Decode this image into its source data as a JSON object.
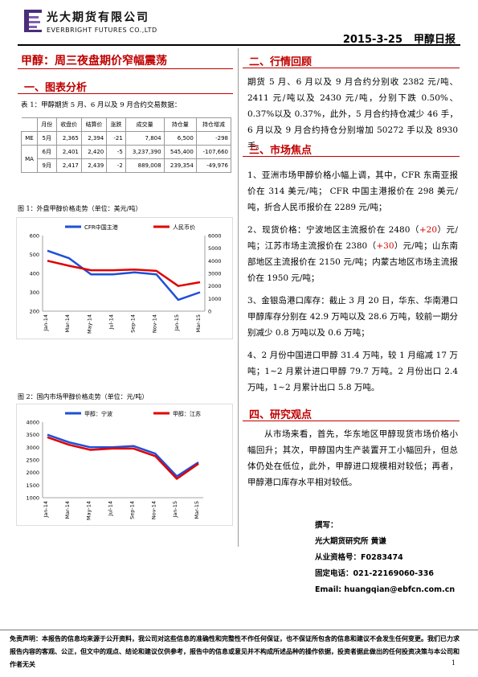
{
  "header": {
    "company_cn": "光大期货有限公司",
    "company_en": "EVERBRIGHT FUTURES CO.,LTD",
    "date": "2015-3-25",
    "report_name": "甲醇日报"
  },
  "headline": "甲醇：周三夜盘期价窄幅震荡",
  "section1": {
    "title": "一、图表分析",
    "table_caption": "表 1：甲醇期货 5 月、6 月以及 9 月合约交易数据：",
    "table": {
      "headers": [
        "月份",
        "收盘价",
        "结算价",
        "涨跌",
        "成交量",
        "持仓量",
        "持仓增减"
      ],
      "rows": [
        {
          "exchange": "ME",
          "month": "5月",
          "close": "2,365",
          "settle": "2,394",
          "change": "-21",
          "volume": "7,804",
          "oi": "6,500",
          "oi_chg": "-298"
        },
        {
          "exchange": "MA",
          "month": "6月",
          "close": "2,401",
          "settle": "2,420",
          "change": "-5",
          "volume": "3,237,390",
          "oi": "545,400",
          "oi_chg": "-107,660"
        },
        {
          "exchange": "",
          "month": "9月",
          "close": "2,417",
          "settle": "2,439",
          "change": "-2",
          "volume": "889,008",
          "oi": "239,354",
          "oi_chg": "-49,976"
        }
      ]
    },
    "fig1_caption": "图 1：外盘甲醇价格走势（单位：美元/吨）",
    "fig2_caption": "图 2：国内市场甲醇价格走势（单位：元/吨）"
  },
  "chart_data": [
    {
      "type": "line",
      "x": [
        "Jan-14",
        "Mar-14",
        "May-14",
        "Jul-14",
        "Sep-14",
        "Nov-14",
        "Jan-15",
        "Mar-15"
      ],
      "series": [
        {
          "name": "CFR中国主港",
          "axis": "left",
          "color": "#1f4fd8",
          "values": [
            520,
            480,
            395,
            395,
            405,
            395,
            260,
            300
          ]
        },
        {
          "name": "人民币价",
          "axis": "right",
          "color": "#e00000",
          "values": [
            4000,
            3600,
            3250,
            3250,
            3300,
            3200,
            2000,
            2300
          ]
        }
      ],
      "ylim_left": [
        200,
        600
      ],
      "yticks_left": [
        200,
        300,
        400,
        500,
        600
      ],
      "ylim_right": [
        0,
        6000
      ],
      "yticks_right": [
        0,
        1000,
        2000,
        3000,
        4000,
        5000,
        6000
      ],
      "xticks": [
        "Jan-14",
        "Mar-14",
        "May-14",
        "Jul-14",
        "Sep-14",
        "Nov-14",
        "Jan-15",
        "Mar-15"
      ]
    },
    {
      "type": "line",
      "x": [
        "Jan-14",
        "Mar-14",
        "May-14",
        "Jul-14",
        "Sep-14",
        "Nov-14",
        "Jan-15",
        "Mar-15"
      ],
      "series": [
        {
          "name": "甲醇：宁波",
          "color": "#1f4fd8",
          "values": [
            3500,
            3200,
            3000,
            3000,
            3050,
            2750,
            1850,
            2400
          ]
        },
        {
          "name": "甲醇：江苏",
          "color": "#e00000",
          "values": [
            3400,
            3100,
            2900,
            2950,
            2950,
            2650,
            1750,
            2350
          ]
        }
      ],
      "ylim": [
        1000,
        4000
      ],
      "yticks": [
        1000,
        1500,
        2000,
        2500,
        3000,
        3500,
        4000
      ],
      "xticks": [
        "Jan-14",
        "Mar-14",
        "May-14",
        "Jul-14",
        "Sep-14",
        "Nov-14",
        "Jan-15",
        "Mar-15"
      ]
    }
  ],
  "section2": {
    "title": "二、行情回顾",
    "text": "期货 5 月、6 月以及 9 月合约分别收 2382 元/吨、2411 元/吨以及 2430 元/吨，分别下跌 0.50%、0.37%以及 0.37%，此外，5 月合约持仓减少 46 手，6 月以及 9 月合约持仓分别增加 50272 手以及 8930 手。"
  },
  "section3": {
    "title": "三、市场焦点",
    "p1": "1、亚洲市场甲醇价格小幅上调，其中，CFR 东南亚报价在 314 美元/吨； CFR 中国主港报价在 298 美元/吨，折合人民币报价在 2289 元/吨；",
    "p2_a": "2、现货价格：宁波地区主流报价在 2480（",
    "p2_b": "+20",
    "p2_c": "）元/吨；江苏市场主流报价在 2380（",
    "p2_d": "+30",
    "p2_e": "）元/吨；山东南部地区主流报价在 2150 元/吨；内蒙古地区市场主流报价在 1950 元/吨；",
    "p3": "3、金银岛港口库存：截止 3 月 20 日，华东、华南港口甲醇库存分别在 42.9 万吨以及 28.6 万吨，较前一期分别减少 0.8 万吨以及 0.6 万吨；",
    "p4": "4、2 月份中国进口甲醇 31.4 万吨，较 1 月缩减 17 万吨；1~2 月累计进口甲醇 79.7 万吨。2 月份出口 2.4 万吨，1~2 月累计出口 5.8 万吨。"
  },
  "section4": {
    "title": "四、研究观点",
    "text": "从市场来看，首先，华东地区甲醇现货市场价格小幅回升；其次，甲醇国内生产装置开工小幅回升，但总体仍处在低位，此外，甲醇进口规模相对较低；再者，甲醇港口库存水平相对较低。"
  },
  "signature": {
    "label": "撰写：",
    "author": "光大期货研究所    黄谦",
    "cert": "从业资格号：F0283474",
    "phone": "固定电话：021-22169060-336",
    "email": "Email:  huangqian@ebfcn.com.cn"
  },
  "footer": {
    "disclaimer": "免责声明：本报告的信息均来源于公开资料，我公司对这些信息的准确性和完整性不作任何保证，也不保证所包含的信息和建议不会发生任何变更。我们已力求报告内容的客观、公正，但文中的观点、结论和建议仅供参考，报告中的信息或意见并不构成所述品种的操作依据，投资者据此做出的任何投资决策与本公司和作者无关",
    "page": "1"
  }
}
